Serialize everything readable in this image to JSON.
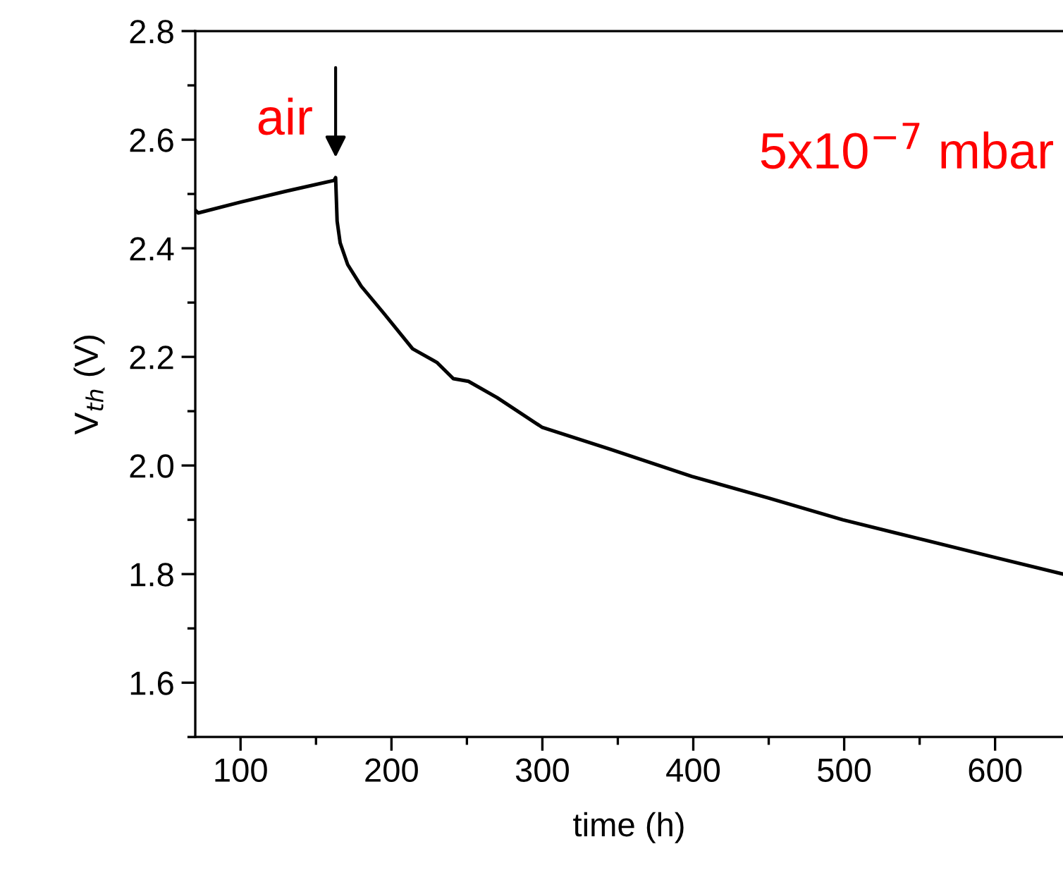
{
  "chart_data": {
    "type": "line",
    "xlabel": "time (h)",
    "ylabel": "V$_{th}$ (V)",
    "x": [
      70,
      72,
      100,
      130,
      162,
      163,
      164,
      166,
      171,
      180,
      195,
      214,
      230,
      241,
      251,
      270,
      300,
      345,
      399,
      450,
      499,
      550,
      601,
      645
    ],
    "series": [
      {
        "color": "#000000",
        "values": [
          2.47,
          2.465,
          2.485,
          2.505,
          2.525,
          2.53,
          2.45,
          2.41,
          2.37,
          2.33,
          2.28,
          2.215,
          2.19,
          2.16,
          2.155,
          2.125,
          2.07,
          2.03,
          1.98,
          1.94,
          1.9,
          1.865,
          1.83,
          1.8
        ]
      }
    ],
    "xlim": [
      70,
      645
    ],
    "xticks": [
      100,
      200,
      300,
      400,
      500,
      600
    ],
    "ylim": [
      1.5,
      2.8
    ],
    "yticks": [
      1.6,
      1.8,
      {
        "value": 2,
        "label": "2.0"
      },
      2.2,
      2.4,
      2.6,
      2.8
    ],
    "annotations": [
      {
        "text": "air",
        "x": 163,
        "y": 2.53
      },
      "5x10$^{−7}$ mbar"
    ],
    "grid": false,
    "legend": false,
    "marker": "none",
    "line_style": "solid"
  }
}
